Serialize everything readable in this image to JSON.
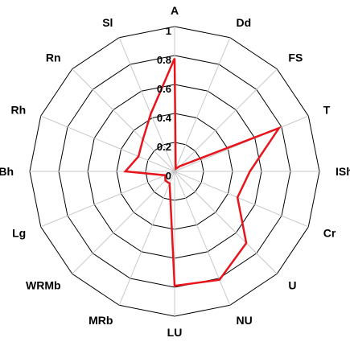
{
  "chart_data": {
    "type": "radar",
    "categories": [
      "A",
      "Dd",
      "FS",
      "T",
      "ISh",
      "Cr",
      "U",
      "NU",
      "LU",
      "MRb",
      "WRMb",
      "Lg",
      "Bh",
      "Rh",
      "Rn",
      "Sl"
    ],
    "tick_values": [
      0,
      0.2,
      0.4,
      0.6,
      0.8,
      1
    ],
    "tick_labels": [
      "0",
      "0.2",
      "0.4",
      "0.6",
      "0.8",
      "1"
    ],
    "rlim": [
      0,
      1
    ],
    "grid": true,
    "legend": "none",
    "series": [
      {
        "values": [
          0.78,
          0.02,
          0.05,
          0.78,
          0.52,
          0.47,
          0.7,
          0.81,
          0.79,
          0.09,
          0.09,
          0.07,
          0.34,
          0.27,
          0.31,
          0.43
        ],
        "color": "#e8141c"
      }
    ],
    "grid_color": "#000000",
    "spoke_color": "#c8c8c8"
  }
}
